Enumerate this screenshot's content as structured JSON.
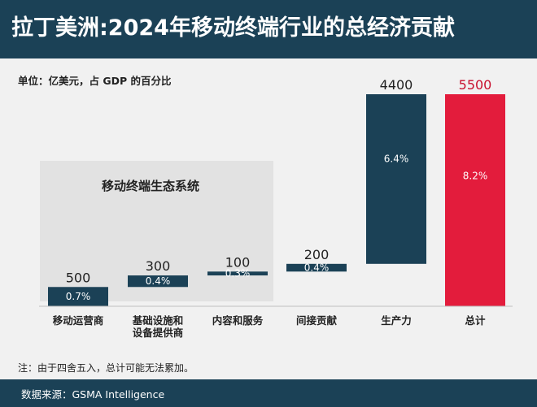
{
  "header": {
    "title": "拉丁美洲:2024年移动终端行业的总经济贡献"
  },
  "unit_label": "单位：亿美元，占 GDP 的百分比",
  "note": "注：由于四舍五入，总计可能无法累加。",
  "footer": {
    "source": "数据来源：GSMA Intelligence"
  },
  "colors": {
    "navy": "#1b4156",
    "red": "#e31c3c",
    "value_red": "#c8102e",
    "panel": "#e2e2e2"
  },
  "chart_data": {
    "type": "bar",
    "subtype": "waterfall",
    "group_label": "移动终端生态系统",
    "ylim": [
      0,
      5500
    ],
    "categories": [
      "移动运营商",
      "基础设施和设备提供商",
      "内容和服务",
      "间接贡献",
      "生产力",
      "总计"
    ],
    "category_lines": [
      [
        "移动运营商"
      ],
      [
        "基础设施和",
        "设备提供商"
      ],
      [
        "内容和服务"
      ],
      [
        "间接贡献"
      ],
      [
        "生产力"
      ],
      [
        "总计"
      ]
    ],
    "values": [
      500,
      300,
      100,
      200,
      4400,
      5500
    ],
    "value_labels": [
      "500",
      "300",
      "100",
      "200",
      "4400",
      "5500"
    ],
    "gdp_share": [
      "0.7%",
      "0.4%",
      "0.3%",
      "0.4%",
      "6.4%",
      "8.2%"
    ],
    "bar_types": [
      "step",
      "step",
      "step",
      "step",
      "step",
      "total"
    ]
  }
}
